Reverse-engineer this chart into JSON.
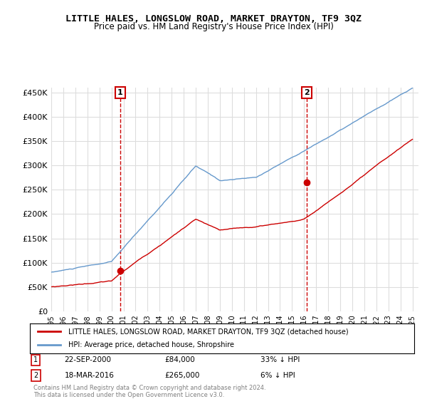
{
  "title": "LITTLE HALES, LONGSLOW ROAD, MARKET DRAYTON, TF9 3QZ",
  "subtitle": "Price paid vs. HM Land Registry's House Price Index (HPI)",
  "ylabel_values": [
    "£0",
    "£50K",
    "£100K",
    "£150K",
    "£200K",
    "£250K",
    "£300K",
    "£350K",
    "£400K",
    "£450K"
  ],
  "yticks": [
    0,
    50000,
    100000,
    150000,
    200000,
    250000,
    300000,
    350000,
    400000,
    450000
  ],
  "xlim_start": 1995.0,
  "xlim_end": 2025.5,
  "ylim": [
    0,
    460000
  ],
  "sale1": {
    "date": 2000.73,
    "price": 84000,
    "label": "1",
    "annotation": "22-SEP-2000",
    "amount": "£84,000",
    "pct": "33% ↓ HPI"
  },
  "sale2": {
    "date": 2016.21,
    "price": 265000,
    "label": "2",
    "annotation": "18-MAR-2016",
    "amount": "£265,000",
    "pct": "6% ↓ HPI"
  },
  "legend_red": "LITTLE HALES, LONGSLOW ROAD, MARKET DRAYTON, TF9 3QZ (detached house)",
  "legend_blue": "HPI: Average price, detached house, Shropshire",
  "footer": "Contains HM Land Registry data © Crown copyright and database right 2024.\nThis data is licensed under the Open Government Licence v3.0.",
  "red_color": "#cc0000",
  "blue_color": "#6699cc",
  "grid_color": "#dddddd",
  "background_color": "#ffffff"
}
